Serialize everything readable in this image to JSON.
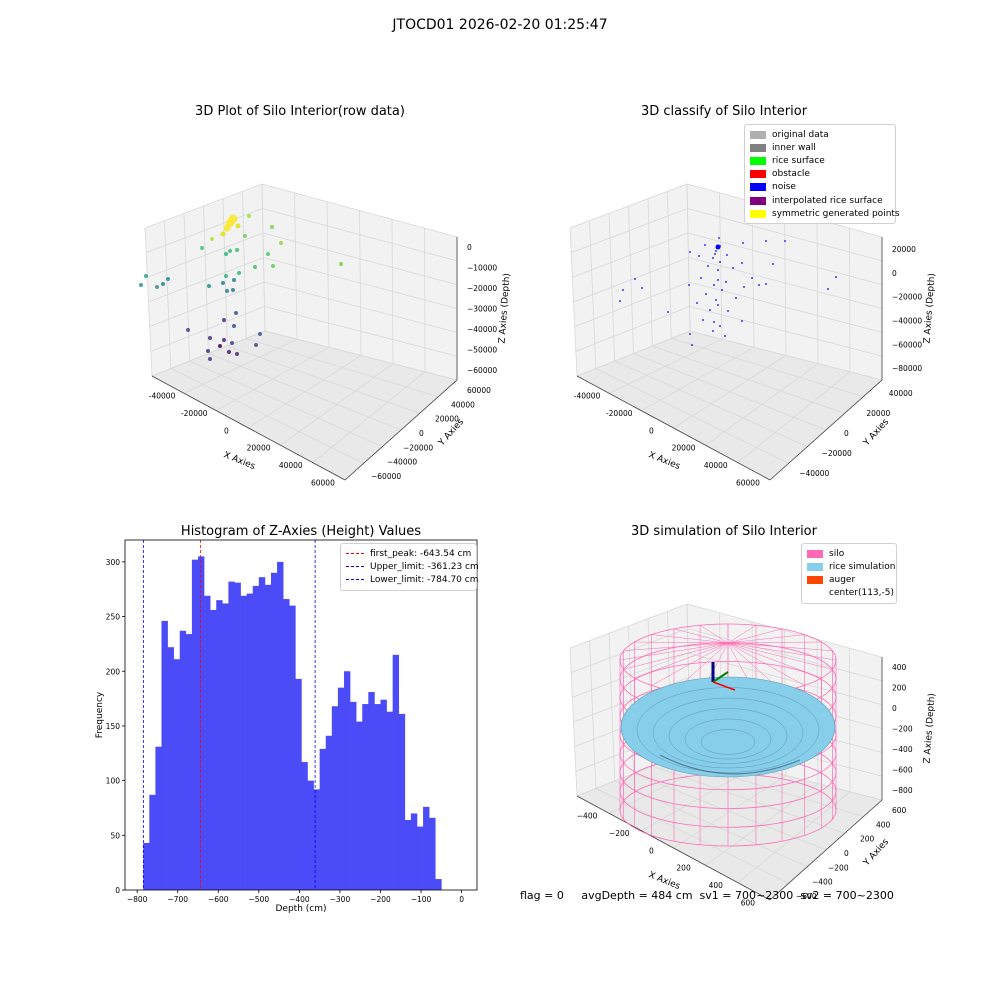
{
  "suptitle": "JTOCD01 2026-02-20 01:25:47",
  "colors": {
    "hist_bar": "#4b4bf7",
    "pane": "#f2f2f2",
    "grid": "#d8d8d8",
    "silo": "#ff69b4",
    "rice": "#87ceeb",
    "peak_line": "#ff0000",
    "limit_line": "#0000ff"
  },
  "panel_raw": {
    "title": "3D Plot of Silo Interior(row data)",
    "xlabel": "X Axies",
    "ylabel": "Y Axies",
    "zlabel": "Z Axies (Depth)",
    "x_ticks": [
      "-40000",
      "-20000",
      "0",
      "20000",
      "40000",
      "60000"
    ],
    "y_ticks": [
      "60000",
      "40000",
      "20000",
      "0",
      "−20000",
      "−40000",
      "−60000"
    ],
    "z_ticks": [
      "0",
      "−10000",
      "−20000",
      "−30000",
      "−40000",
      "−50000",
      "−60000"
    ],
    "points": [
      [
        233,
        219,
        "#fde725",
        9
      ],
      [
        230,
        223,
        "#fde725",
        8
      ],
      [
        227,
        228,
        "#fde725",
        7
      ],
      [
        223,
        234,
        "#dde318",
        5
      ],
      [
        238,
        226,
        "#dde318",
        5
      ],
      [
        249,
        216,
        "#a2da37",
        4
      ],
      [
        272,
        227,
        "#7ad151",
        4
      ],
      [
        245,
        236,
        "#6ece58",
        4
      ],
      [
        212,
        239,
        "#b5de2b",
        4
      ],
      [
        281,
        243,
        "#90d743",
        4
      ],
      [
        202,
        248,
        "#4ac16d",
        4
      ],
      [
        230,
        251,
        "#3fbc73",
        4
      ],
      [
        237,
        250,
        "#3bbb75",
        4
      ],
      [
        226,
        254,
        "#2fb47c",
        4
      ],
      [
        268,
        254,
        "#52c569",
        4
      ],
      [
        273,
        266,
        "#65cb5e",
        4
      ],
      [
        255,
        267,
        "#3fbc73",
        4
      ],
      [
        341,
        264,
        "#7ad151",
        4
      ],
      [
        239,
        273,
        "#35b779",
        4
      ],
      [
        226,
        276,
        "#2db27d",
        4
      ],
      [
        234,
        280,
        "#2a788e",
        4
      ],
      [
        233,
        290,
        "#2a788e",
        4
      ],
      [
        223,
        283,
        "#26828e",
        4
      ],
      [
        227,
        291,
        "#27808e",
        4
      ],
      [
        209,
        286,
        "#21918c",
        4
      ],
      [
        146,
        276,
        "#2a9d8a",
        4
      ],
      [
        168,
        279,
        "#228c8d",
        4
      ],
      [
        163,
        284,
        "#25848e",
        4
      ],
      [
        141,
        285,
        "#1f9e89",
        4
      ],
      [
        157,
        287,
        "#3e8b8e",
        4
      ],
      [
        236,
        313,
        "#3b528b",
        4
      ],
      [
        224,
        320,
        "#482878",
        4
      ],
      [
        234,
        326,
        "#3e4989",
        4
      ],
      [
        188,
        330,
        "#414487",
        4
      ],
      [
        260,
        334,
        "#3b528b",
        4
      ],
      [
        210,
        338,
        "#46337f",
        4
      ],
      [
        224,
        340,
        "#482475",
        4
      ],
      [
        232,
        343,
        "#433e85",
        4
      ],
      [
        220,
        346,
        "#440154",
        4
      ],
      [
        256,
        345,
        "#3e4a89",
        4
      ],
      [
        208,
        351,
        "#46327e",
        4
      ],
      [
        229,
        352,
        "#48186a",
        4
      ],
      [
        237,
        354,
        "#482475",
        4
      ],
      [
        210,
        359,
        "#45337f",
        4
      ]
    ]
  },
  "panel_cls": {
    "title": "3D classify of Silo Interior",
    "xlabel": "X Axies",
    "ylabel": "Y Axies",
    "zlabel": "Z Axies (Depth)",
    "x_ticks": [
      "-40000",
      "-20000",
      "0",
      "20000",
      "40000",
      "60000"
    ],
    "y_ticks": [
      "40000",
      "20000",
      "0",
      "−20000",
      "−40000"
    ],
    "z_ticks": [
      "20000",
      "0",
      "−20000",
      "−40000",
      "−60000",
      "−80000"
    ],
    "legend": [
      {
        "label": "original data",
        "color": "#b0b0b0"
      },
      {
        "label": "inner wall",
        "color": "#808080"
      },
      {
        "label": "rice surface",
        "color": "#00ff00"
      },
      {
        "label": "obstacle",
        "color": "#ff0000"
      },
      {
        "label": "noise",
        "color": "#0000ff"
      },
      {
        "label": "interpolated rice surface",
        "color": "#800080"
      },
      {
        "label": "symmetric generated points",
        "color": "#ffff00"
      }
    ],
    "noise_points": [
      [
        718,
        248
      ],
      [
        716,
        251
      ],
      [
        720,
        246
      ],
      [
        715,
        254
      ],
      [
        713,
        258
      ],
      [
        720,
        262
      ],
      [
        708,
        266
      ],
      [
        718,
        270
      ],
      [
        701,
        278
      ],
      [
        718,
        280
      ],
      [
        714,
        285
      ],
      [
        722,
        290
      ],
      [
        706,
        294
      ],
      [
        716,
        300
      ],
      [
        718,
        305
      ],
      [
        710,
        310
      ],
      [
        703,
        320
      ],
      [
        714,
        322
      ],
      [
        720,
        326
      ],
      [
        713,
        331
      ],
      [
        690,
        334
      ],
      [
        692,
        345
      ],
      [
        699,
        256
      ],
      [
        719,
        238
      ],
      [
        743,
        243
      ],
      [
        766,
        241
      ],
      [
        690,
        252
      ],
      [
        742,
        263
      ],
      [
        773,
        264
      ],
      [
        752,
        278
      ],
      [
        744,
        287
      ],
      [
        759,
        285
      ],
      [
        766,
        284
      ],
      [
        642,
        288
      ],
      [
        620,
        301
      ],
      [
        623,
        290
      ],
      [
        635,
        279
      ],
      [
        668,
        312
      ],
      [
        742,
        321
      ],
      [
        725,
        336
      ],
      [
        828,
        289
      ],
      [
        836,
        277
      ],
      [
        785,
        241
      ],
      [
        705,
        245
      ],
      [
        727,
        255
      ],
      [
        733,
        268
      ],
      [
        726,
        282
      ],
      [
        736,
        298
      ],
      [
        728,
        311
      ],
      [
        697,
        303
      ],
      [
        689,
        285
      ]
    ]
  },
  "chart_data": {
    "type": "bar",
    "title": "Histogram of Z-Axies (Height) Values",
    "xlabel": "Depth (cm)",
    "ylabel": "Frequency",
    "xlim": [
      -830,
      38
    ],
    "ylim": [
      0,
      320
    ],
    "x_ticks": [
      -800,
      -700,
      -600,
      -500,
      -400,
      -300,
      -200,
      -100,
      0
    ],
    "y_ticks": [
      0,
      50,
      100,
      150,
      200,
      250,
      300
    ],
    "bin_start": -785,
    "bin_width": 15,
    "values": [
      43,
      87,
      131,
      246,
      222,
      211,
      237,
      234,
      302,
      305,
      269,
      256,
      265,
      262,
      282,
      281,
      269,
      271,
      278,
      286,
      279,
      290,
      300,
      266,
      260,
      193,
      117,
      100,
      92,
      129,
      141,
      168,
      185,
      200,
      172,
      154,
      170,
      181,
      170,
      174,
      163,
      215,
      161,
      64,
      70,
      58,
      76,
      66,
      10
    ],
    "lines": [
      {
        "label": "first_peak: -643.54 cm",
        "x": -643.54,
        "color": "#ff0000"
      },
      {
        "label": "Upper_limit: -361.23 cm",
        "x": -361.23,
        "color": "#0000ff"
      },
      {
        "label": "Lower_limit: -784.70 cm",
        "x": -784.7,
        "color": "#0000ff"
      }
    ]
  },
  "panel_sim": {
    "title": "3D simulation of Silo Interior",
    "xlabel": "X Axies",
    "ylabel": "Y Axies",
    "zlabel": "Z Axies (Depth)",
    "x_ticks": [
      "−400",
      "−200",
      "0",
      "200",
      "400",
      "600"
    ],
    "y_ticks": [
      "600",
      "400",
      "200",
      "0",
      "−200",
      "−400",
      "−600"
    ],
    "z_ticks": [
      "400",
      "200",
      "0",
      "−200",
      "−400",
      "−600",
      "−800"
    ],
    "legend": [
      {
        "label": "silo",
        "color": "#ff69b4"
      },
      {
        "label": "rice simulation",
        "color": "#87ceeb"
      },
      {
        "label": "auger",
        "color": "#ff4500"
      },
      {
        "label": "center(113,-5)",
        "color": ""
      }
    ]
  },
  "stats": "flag = 0     avgDepth = 484 cm  sv1 = 700~2300  sv2 = 700~2300"
}
